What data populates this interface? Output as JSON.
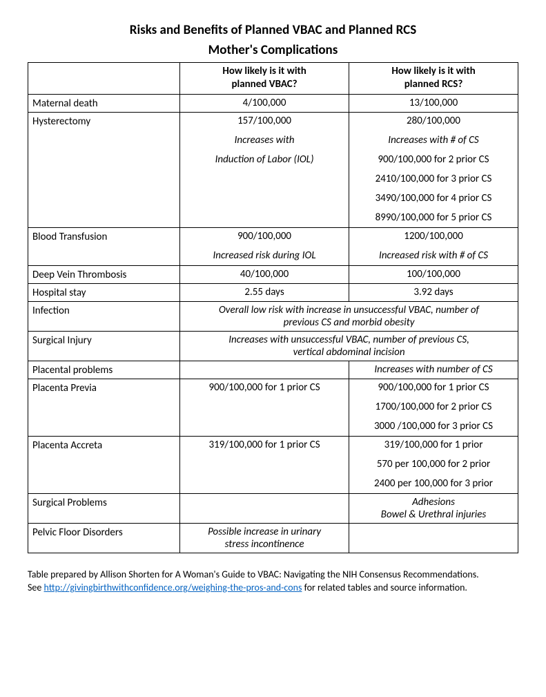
{
  "title": "Risks and Benefits of Planned VBAC and Planned RCS",
  "subtitle": "Mother's Complications",
  "table": {
    "headers": {
      "col1": "",
      "col2_line1": "How likely is it with",
      "col2_line2": "planned VBAC?",
      "col3_line1": "How likely is it with",
      "col3_line2": "planned RCS?"
    },
    "rows": {
      "maternal_death": {
        "label": "Maternal death",
        "vbac": "4/100,000",
        "rcs": "13/100,000"
      },
      "hysterectomy": {
        "label": "Hysterectomy",
        "vbac_1": "157/100,000",
        "vbac_2": "Increases with",
        "vbac_3": "Induction of Labor (IOL)",
        "rcs_1": "280/100,000",
        "rcs_2": "Increases with # of CS",
        "rcs_3": "900/100,000 for 2 prior CS",
        "rcs_4": "2410/100,000 for 3 prior CS",
        "rcs_5": "3490/100,000 for 4 prior CS",
        "rcs_6": "8990/100,000 for 5 prior CS"
      },
      "blood_transfusion": {
        "label": "Blood Transfusion",
        "vbac_1": "900/100,000",
        "vbac_2": "Increased risk during IOL",
        "rcs_1": "1200/100,000",
        "rcs_2": "Increased risk with # of CS"
      },
      "dvt": {
        "label": "Deep Vein Thrombosis",
        "vbac": "40/100,000",
        "rcs": "100/100,000"
      },
      "hospital_stay": {
        "label": "Hospital stay",
        "vbac": "2.55 days",
        "rcs": "3.92 days"
      },
      "infection": {
        "label": "Infection",
        "span_1": "Overall low risk with increase in unsuccessful VBAC, number of",
        "span_2": "previous CS and morbid obesity"
      },
      "surgical_injury": {
        "label": "Surgical Injury",
        "span_1": "Increases with unsuccessful VBAC, number of previous CS,",
        "span_2": "vertical abdominal incision"
      },
      "placental_problems": {
        "label": "Placental problems",
        "vbac": "",
        "rcs": "Increases with number of CS"
      },
      "placenta_previa": {
        "label": "Placenta Previa",
        "vbac_1": "900/100,000 for 1 prior CS",
        "rcs_1": "900/100,000 for 1 prior CS",
        "rcs_2": "1700/100,000 for 2 prior CS",
        "rcs_3": "3000 /100,000 for 3 prior CS"
      },
      "placenta_accreta": {
        "label": "Placenta Accreta",
        "vbac_1": "319/100,000 for 1 prior CS",
        "rcs_1": "319/100,000 for 1 prior",
        "rcs_2": "570 per 100,000 for 2 prior",
        "rcs_3": "2400 per 100,000 for 3 prior"
      },
      "surgical_problems": {
        "label": "Surgical Problems",
        "vbac": "",
        "rcs_1": "Adhesions",
        "rcs_2": "Bowel & Urethral injuries"
      },
      "pelvic_floor": {
        "label": "Pelvic Floor Disorders",
        "vbac_1": "Possible increase in urinary",
        "vbac_2": "stress incontinence",
        "rcs": ""
      }
    }
  },
  "footnote": {
    "line1_a": "Table prepared by Allison Shorten for A Woman's Guide to VBAC: Navigating the NIH Consensus Recommendations.",
    "line2_a": "See ",
    "link": "http://givingbirthwithconfidence.org/weighing-the-pros-and-cons",
    "line2_b": " for related tables and source information."
  }
}
